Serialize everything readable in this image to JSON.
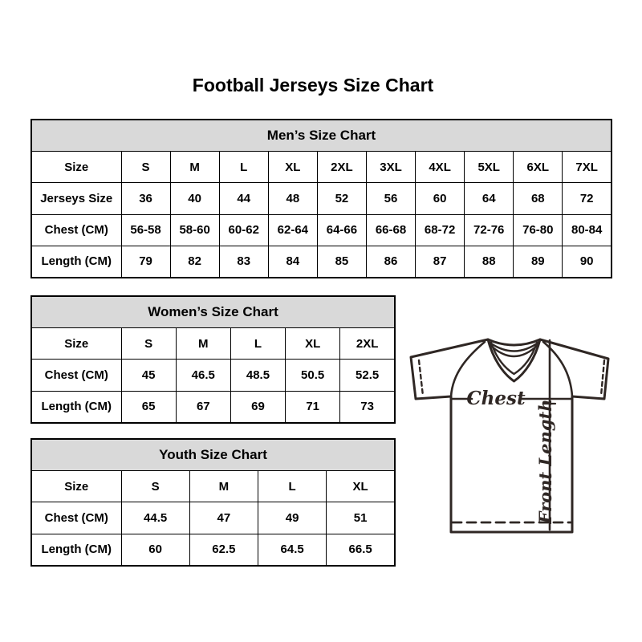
{
  "page": {
    "title": "Football Jerseys Size Chart"
  },
  "colors": {
    "background": "#ffffff",
    "table_border": "#000000",
    "table_header_bg": "#d9d9d9",
    "text": "#000000",
    "diagram_line": "#2f2724"
  },
  "tables": [
    {
      "id": "mens",
      "title": "Men’s Size Chart",
      "rows": [
        [
          "Size",
          "S",
          "M",
          "L",
          "XL",
          "2XL",
          "3XL",
          "4XL",
          "5XL",
          "6XL",
          "7XL"
        ],
        [
          "Jerseys Size",
          "36",
          "40",
          "44",
          "48",
          "52",
          "56",
          "60",
          "64",
          "68",
          "72"
        ],
        [
          "Chest (CM)",
          "56-58",
          "58-60",
          "60-62",
          "62-64",
          "64-66",
          "66-68",
          "68-72",
          "72-76",
          "76-80",
          "80-84"
        ],
        [
          "Length (CM)",
          "79",
          "82",
          "83",
          "84",
          "85",
          "86",
          "87",
          "88",
          "89",
          "90"
        ]
      ]
    },
    {
      "id": "womens",
      "title": "Women’s Size Chart",
      "rows": [
        [
          "Size",
          "S",
          "M",
          "L",
          "XL",
          "2XL"
        ],
        [
          "Chest (CM)",
          "45",
          "46.5",
          "48.5",
          "50.5",
          "52.5"
        ],
        [
          "Length (CM)",
          "65",
          "67",
          "69",
          "71",
          "73"
        ]
      ]
    },
    {
      "id": "youth",
      "title": "Youth Size Chart",
      "rows": [
        [
          "Size",
          "S",
          "M",
          "L",
          "XL"
        ],
        [
          "Chest (CM)",
          "44.5",
          "47",
          "49",
          "51"
        ],
        [
          "Length (CM)",
          "60",
          "62.5",
          "64.5",
          "66.5"
        ]
      ]
    }
  ],
  "diagram": {
    "chest_label": "Chest",
    "front_length_label": "Front Length"
  }
}
